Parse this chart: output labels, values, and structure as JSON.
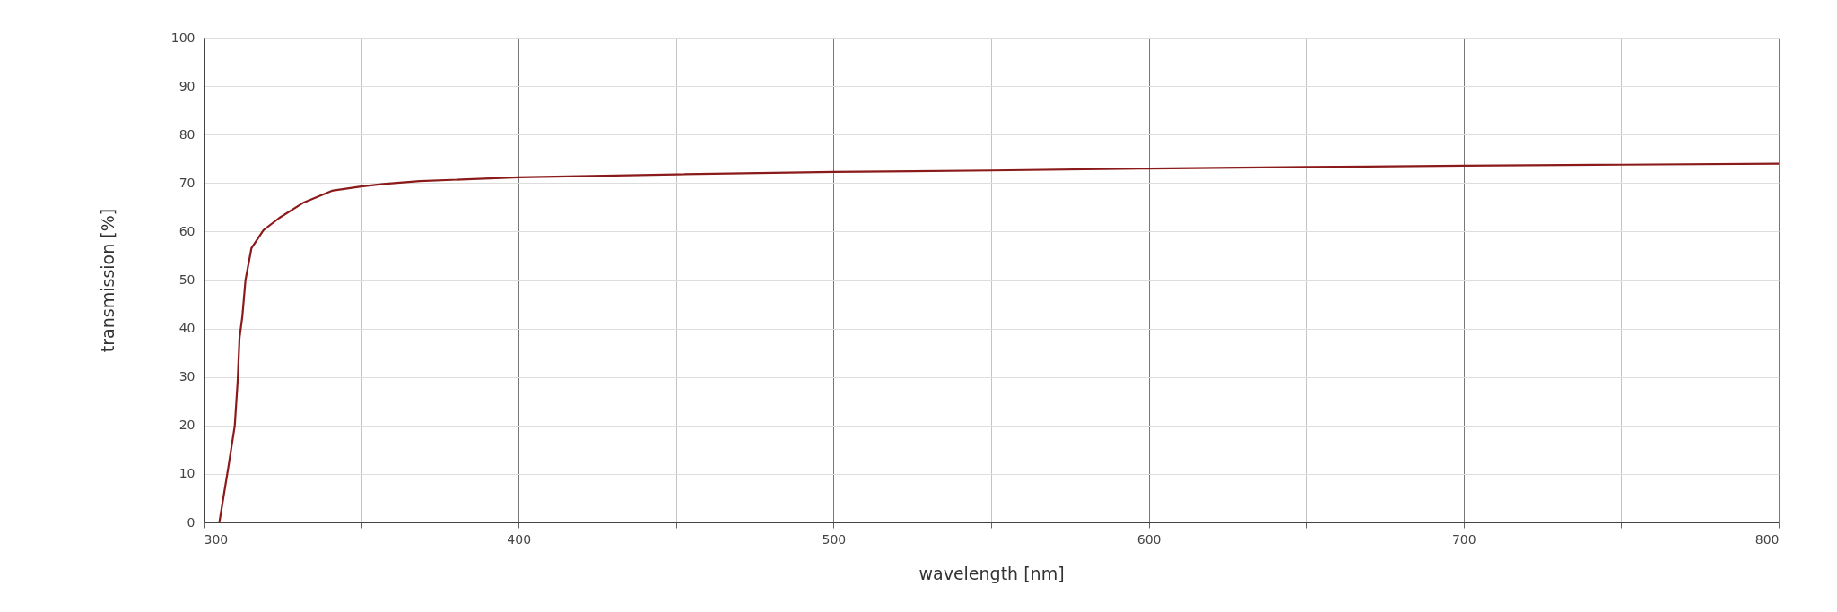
{
  "chart_data": {
    "type": "line",
    "xlabel": "wavelength [nm]",
    "ylabel": "transmission [%]",
    "x": [
      305,
      308,
      309.9,
      310.8,
      311.4,
      312.3,
      313.3,
      315.2,
      319,
      324,
      331.8,
      340.7,
      350,
      357,
      368.6,
      400,
      450,
      500,
      550,
      600,
      650,
      700,
      750,
      800
    ],
    "series": [
      {
        "color": "#8b1a1a",
        "values": [
          0,
          12,
          20,
          29,
          38,
          42.5,
          50,
          56.6,
          60.3,
          62.8,
          66,
          68.4,
          69.3,
          69.8,
          70.4,
          71.2,
          71.8,
          72.3,
          72.6,
          73.0,
          73.3,
          73.6,
          73.8,
          74.0
        ]
      }
    ],
    "xlim": [
      300,
      800
    ],
    "ylim": [
      0,
      100
    ],
    "xticks": [
      300,
      {
        "value": 350,
        "label": null
      },
      400,
      {
        "value": 450,
        "label": null
      },
      500,
      {
        "value": 550,
        "label": null
      },
      600,
      {
        "value": 650,
        "label": null
      },
      700,
      {
        "value": 750,
        "label": null
      },
      800
    ],
    "yticks": [
      0,
      10,
      20,
      30,
      40,
      50,
      60,
      70,
      80,
      90,
      100
    ],
    "grid": true,
    "marker": "none",
    "line_style": "solid"
  }
}
